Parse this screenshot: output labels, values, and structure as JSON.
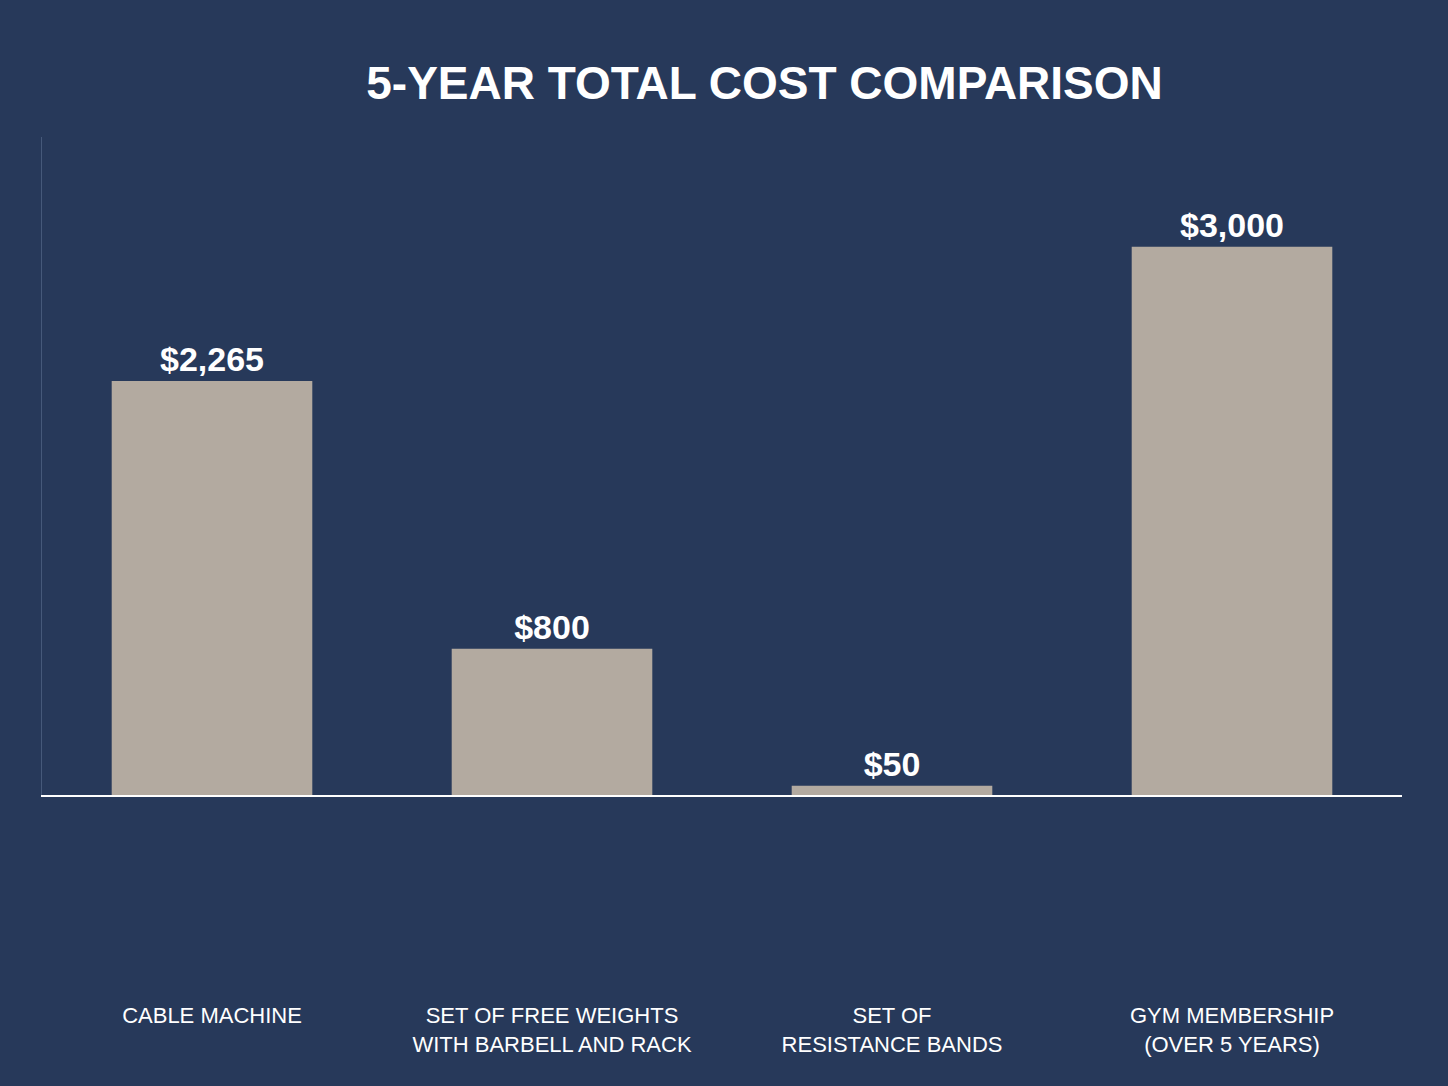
{
  "chart_data": {
    "type": "bar",
    "title": "5-YEAR TOTAL COST COMPARISON",
    "categories": [
      "CABLE MACHINE",
      "SET OF FREE WEIGHTS WITH BARBELL AND RACK",
      "SET OF RESISTANCE BANDS",
      "GYM MEMBERSHIP (OVER 5 YEARS)"
    ],
    "values": [
      2265,
      800,
      50,
      3000
    ],
    "value_labels": [
      "$2,265",
      "$800",
      "$50",
      "$3,000"
    ],
    "color": "#b3aaa0",
    "ylim": [
      0,
      3600
    ],
    "grid": false,
    "data_labels": true,
    "tick_labels": "x"
  }
}
